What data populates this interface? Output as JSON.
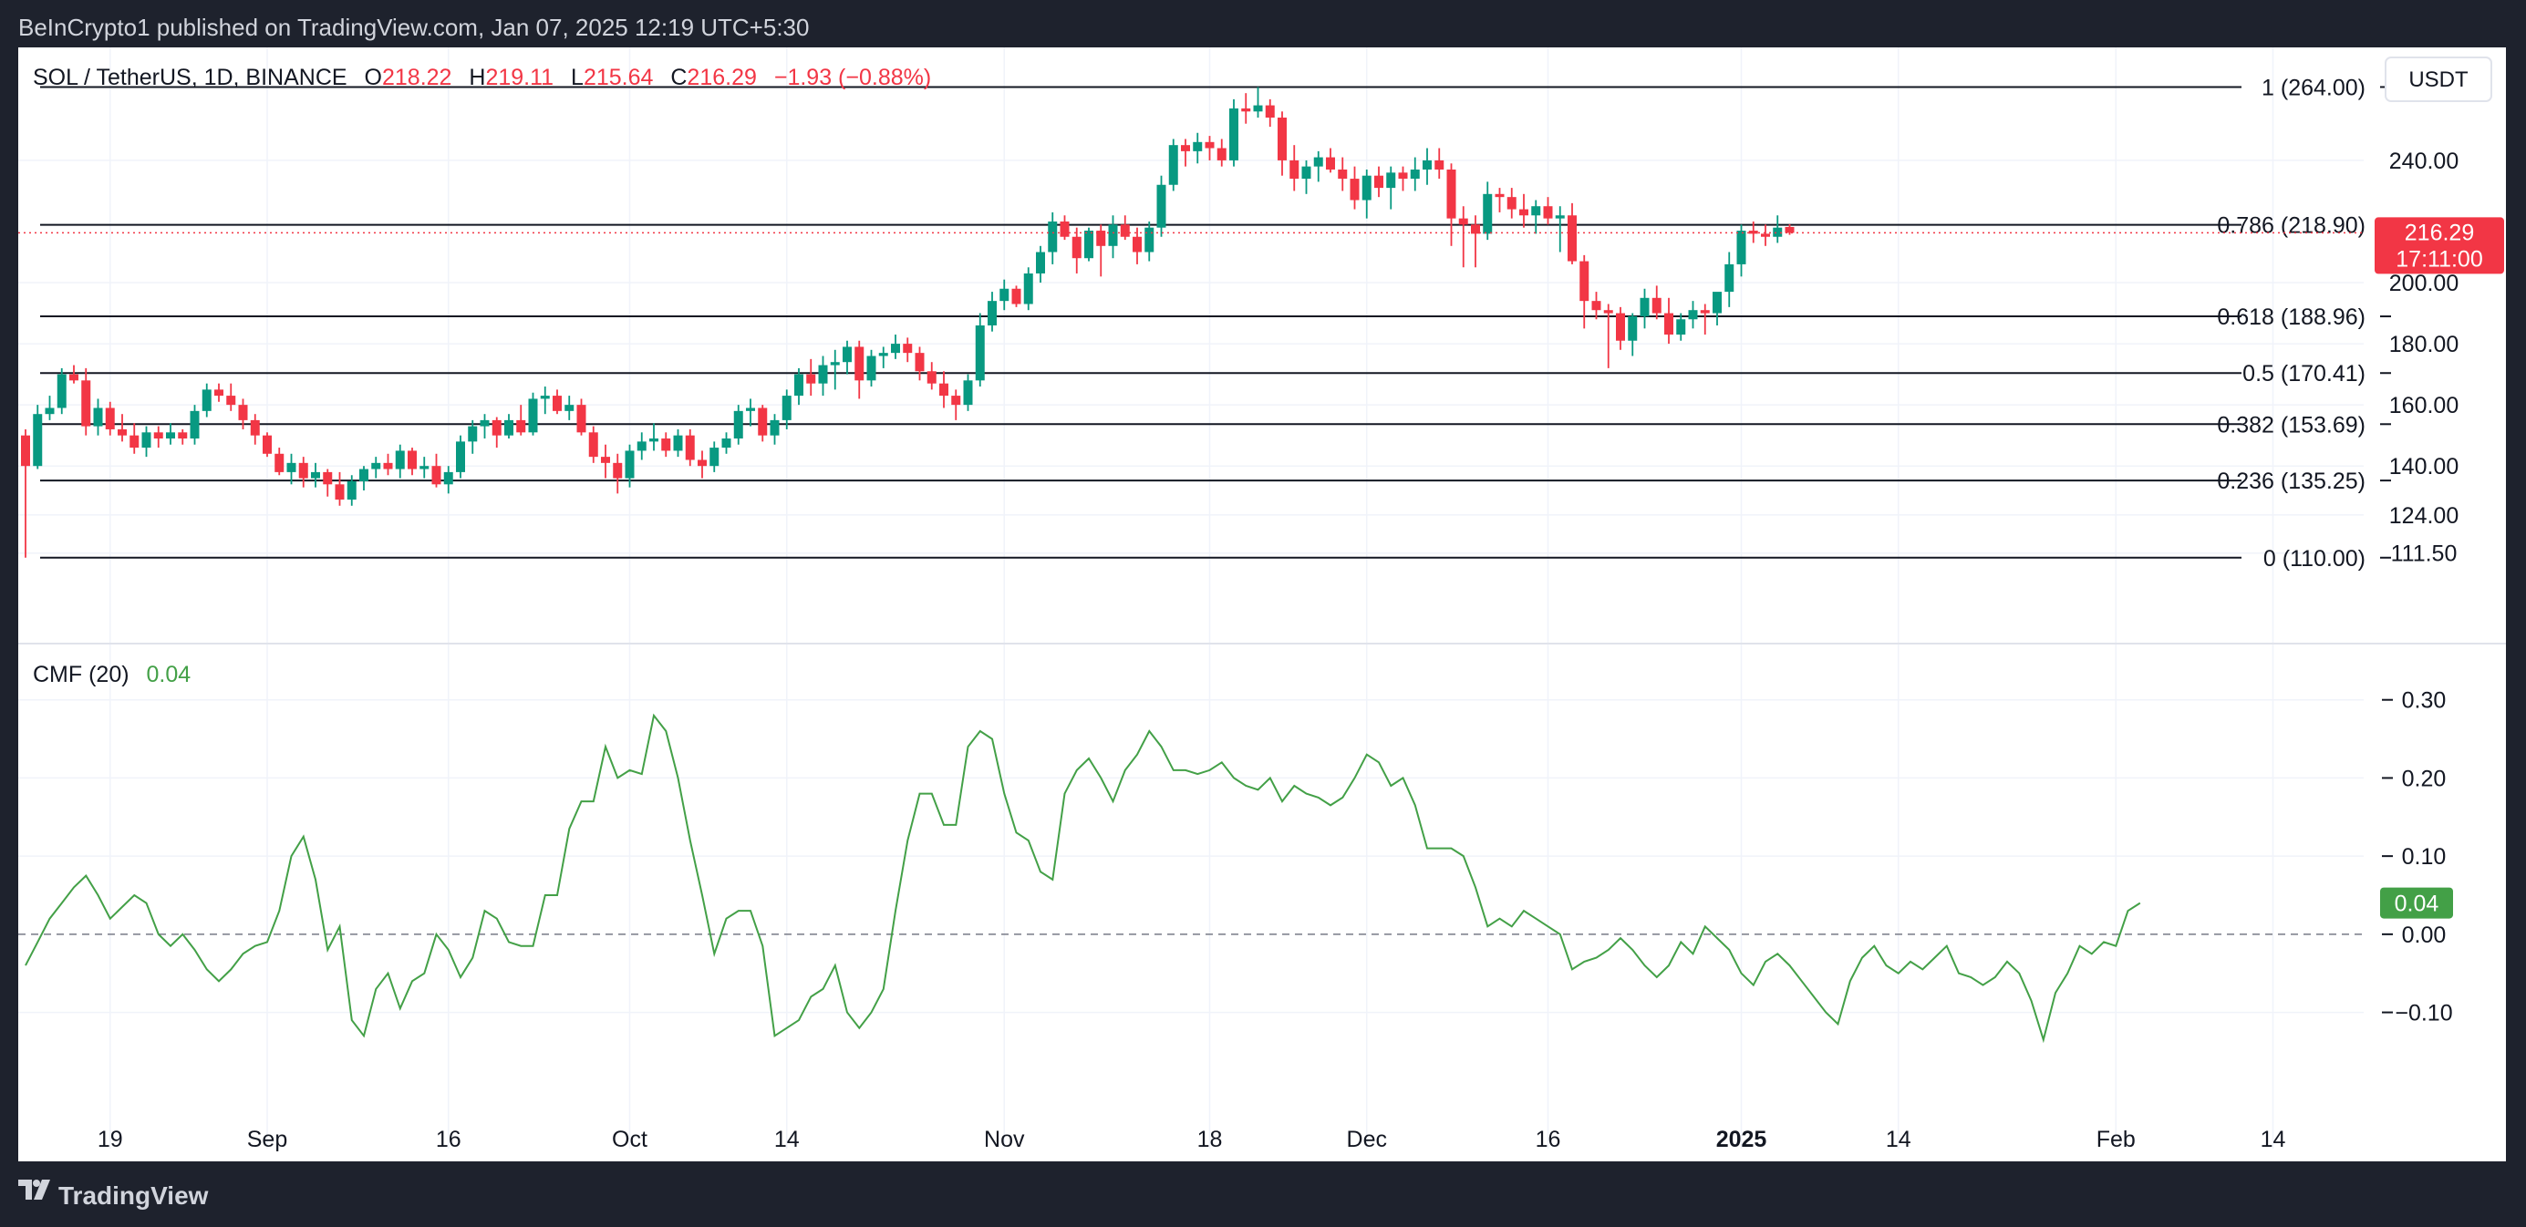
{
  "header": {
    "publisher": "BeInCrypto1 published on TradingView.com, Jan 07, 2025 12:19 UTC+5:30"
  },
  "footer": {
    "brand": "TradingView"
  },
  "legend": {
    "symbol": "SOL / TetherUS, 1D, BINANCE",
    "o_label": "O",
    "o_value": "218.22",
    "h_label": "H",
    "h_value": "219.11",
    "l_label": "L",
    "l_value": "215.64",
    "c_label": "C",
    "c_value": "216.29",
    "change": "−1.93 (−0.88%)"
  },
  "currency_button": "USDT",
  "price_axis": {
    "ticks": [
      {
        "value": 240,
        "label": "240.00"
      },
      {
        "value": 200,
        "label": "200.00"
      },
      {
        "value": 180,
        "label": "180.00"
      },
      {
        "value": 160,
        "label": "160.00"
      },
      {
        "value": 140,
        "label": "140.00"
      },
      {
        "value": 124,
        "label": "124.00"
      },
      {
        "value": 111.5,
        "label": "111.50"
      }
    ],
    "last_price": "216.29",
    "countdown": "17:11:00"
  },
  "fib_levels": [
    {
      "label": "1 (264.00)",
      "value": 264
    },
    {
      "label": "0.786 (218.90)",
      "value": 218.9
    },
    {
      "label": "0.618 (188.96)",
      "value": 188.96
    },
    {
      "label": "0.5 (170.41)",
      "value": 170.41
    },
    {
      "label": "0.382 (153.69)",
      "value": 153.69
    },
    {
      "label": "0.236 (135.25)",
      "value": 135.25
    },
    {
      "label": "0 (110.00)",
      "value": 110
    }
  ],
  "cmf": {
    "label": "CMF (20)",
    "value_label": "0.04",
    "badge": "0.04",
    "axis": [
      {
        "value": 0.3,
        "label": "0.30"
      },
      {
        "value": 0.2,
        "label": "0.20"
      },
      {
        "value": 0.1,
        "label": "0.10"
      },
      {
        "value": 0.0,
        "label": "0.00"
      },
      {
        "value": -0.1,
        "label": "−0.10"
      }
    ]
  },
  "time_axis": [
    {
      "label": "19",
      "day": 7,
      "bold": false
    },
    {
      "label": "Sep",
      "day": 20,
      "bold": false
    },
    {
      "label": "16",
      "day": 35,
      "bold": false
    },
    {
      "label": "Oct",
      "day": 50,
      "bold": false
    },
    {
      "label": "14",
      "day": 63,
      "bold": false
    },
    {
      "label": "Nov",
      "day": 81,
      "bold": false
    },
    {
      "label": "18",
      "day": 98,
      "bold": false
    },
    {
      "label": "Dec",
      "day": 111,
      "bold": false
    },
    {
      "label": "16",
      "day": 126,
      "bold": false
    },
    {
      "label": "2025",
      "day": 142,
      "bold": true
    },
    {
      "label": "14",
      "day": 155,
      "bold": false
    },
    {
      "label": "Feb",
      "day": 173,
      "bold": false
    },
    {
      "label": "14",
      "day": 186,
      "bold": false
    }
  ],
  "colors": {
    "up": "#089981",
    "down": "#f23645",
    "cmf": "#43a047",
    "grid": "#f0f3fa",
    "text": "#131722",
    "badge_green": "#43a047"
  },
  "chart_data": [
    {
      "type": "candlestick",
      "title": "SOL / TetherUS, 1D, BINANCE",
      "ylim": [
        98,
        271
      ],
      "log_scale": false,
      "x_start": "2024-08-12",
      "ohlc": [
        [
          150,
          152,
          110,
          140
        ],
        [
          140,
          160,
          139,
          157
        ],
        [
          157,
          163,
          155,
          159
        ],
        [
          159,
          172,
          157,
          170
        ],
        [
          170,
          173,
          167,
          168
        ],
        [
          168,
          172,
          150,
          153
        ],
        [
          153,
          162,
          150,
          159
        ],
        [
          159,
          161,
          150,
          152
        ],
        [
          152,
          157,
          148,
          150
        ],
        [
          150,
          154,
          144,
          146
        ],
        [
          146,
          153,
          143,
          151
        ],
        [
          151,
          153,
          146,
          149
        ],
        [
          149,
          154,
          147,
          151
        ],
        [
          151,
          152,
          147,
          149
        ],
        [
          149,
          160,
          147,
          158
        ],
        [
          158,
          167,
          156,
          165
        ],
        [
          165,
          167,
          161,
          163
        ],
        [
          163,
          167,
          158,
          160
        ],
        [
          160,
          162,
          152,
          155
        ],
        [
          155,
          157,
          147,
          150
        ],
        [
          150,
          151,
          143,
          144
        ],
        [
          144,
          146,
          137,
          138
        ],
        [
          138,
          144,
          134,
          141
        ],
        [
          141,
          143,
          133,
          136
        ],
        [
          136,
          141,
          133,
          138
        ],
        [
          138,
          139,
          130,
          134
        ],
        [
          134,
          138,
          127,
          129
        ],
        [
          129,
          137,
          127,
          135
        ],
        [
          135,
          140,
          132,
          139
        ],
        [
          139,
          143,
          136,
          141
        ],
        [
          141,
          144,
          137,
          139
        ],
        [
          139,
          147,
          136,
          145
        ],
        [
          145,
          146,
          137,
          139
        ],
        [
          139,
          143,
          136,
          140
        ],
        [
          140,
          144,
          133,
          134
        ],
        [
          134,
          140,
          131,
          138
        ],
        [
          138,
          150,
          136,
          148
        ],
        [
          148,
          155,
          144,
          153
        ],
        [
          153,
          157,
          149,
          155
        ],
        [
          155,
          156,
          146,
          150
        ],
        [
          150,
          157,
          149,
          155
        ],
        [
          155,
          160,
          150,
          151
        ],
        [
          151,
          164,
          150,
          162
        ],
        [
          162,
          166,
          157,
          163
        ],
        [
          163,
          165,
          157,
          158
        ],
        [
          158,
          163,
          155,
          160
        ],
        [
          160,
          162,
          150,
          151
        ],
        [
          151,
          153,
          141,
          143
        ],
        [
          143,
          147,
          136,
          141
        ],
        [
          141,
          144,
          131,
          136
        ],
        [
          136,
          147,
          133,
          145
        ],
        [
          145,
          151,
          142,
          148
        ],
        [
          148,
          154,
          145,
          149
        ],
        [
          149,
          151,
          143,
          145
        ],
        [
          145,
          152,
          143,
          150
        ],
        [
          150,
          152,
          140,
          142
        ],
        [
          142,
          145,
          136,
          140
        ],
        [
          140,
          148,
          138,
          146
        ],
        [
          146,
          151,
          144,
          149
        ],
        [
          149,
          160,
          147,
          158
        ],
        [
          158,
          162,
          153,
          159
        ],
        [
          159,
          160,
          148,
          150
        ],
        [
          150,
          157,
          147,
          155
        ],
        [
          155,
          165,
          152,
          163
        ],
        [
          163,
          172,
          160,
          170
        ],
        [
          170,
          175,
          163,
          167
        ],
        [
          167,
          176,
          163,
          173
        ],
        [
          173,
          178,
          165,
          174
        ],
        [
          174,
          181,
          170,
          179
        ],
        [
          179,
          181,
          162,
          168
        ],
        [
          168,
          178,
          166,
          176
        ],
        [
          176,
          179,
          172,
          177
        ],
        [
          177,
          183,
          175,
          180
        ],
        [
          180,
          182,
          174,
          177
        ],
        [
          177,
          179,
          168,
          171
        ],
        [
          171,
          174,
          165,
          167
        ],
        [
          167,
          171,
          159,
          163
        ],
        [
          163,
          165,
          155,
          160
        ],
        [
          160,
          170,
          158,
          168
        ],
        [
          168,
          190,
          166,
          186
        ],
        [
          186,
          197,
          184,
          194
        ],
        [
          194,
          201,
          191,
          198
        ],
        [
          198,
          199,
          192,
          193
        ],
        [
          193,
          205,
          191,
          203
        ],
        [
          203,
          212,
          200,
          210
        ],
        [
          210,
          223,
          206,
          220
        ],
        [
          220,
          222,
          214,
          215
        ],
        [
          215,
          218,
          203,
          208
        ],
        [
          208,
          218,
          207,
          217
        ],
        [
          217,
          219,
          202,
          212
        ],
        [
          212,
          222,
          208,
          219
        ],
        [
          219,
          222,
          214,
          215
        ],
        [
          215,
          218,
          206,
          210
        ],
        [
          210,
          220,
          207,
          218
        ],
        [
          218,
          235,
          215,
          232
        ],
        [
          232,
          247,
          230,
          245
        ],
        [
          245,
          247,
          238,
          243
        ],
        [
          243,
          249,
          239,
          246
        ],
        [
          246,
          248,
          240,
          244
        ],
        [
          244,
          247,
          238,
          240
        ],
        [
          240,
          260,
          238,
          257
        ],
        [
          257,
          262,
          252,
          256
        ],
        [
          256,
          264,
          254,
          258
        ],
        [
          258,
          260,
          251,
          254
        ],
        [
          254,
          256,
          235,
          240
        ],
        [
          240,
          245,
          230,
          234
        ],
        [
          234,
          240,
          229,
          238
        ],
        [
          238,
          243,
          233,
          241
        ],
        [
          241,
          244,
          236,
          237
        ],
        [
          237,
          241,
          230,
          234
        ],
        [
          234,
          238,
          224,
          227
        ],
        [
          227,
          237,
          221,
          235
        ],
        [
          235,
          238,
          228,
          231
        ],
        [
          231,
          238,
          224,
          236
        ],
        [
          236,
          238,
          230,
          234
        ],
        [
          234,
          241,
          230,
          237
        ],
        [
          237,
          244,
          232,
          240
        ],
        [
          240,
          244,
          234,
          237
        ],
        [
          237,
          239,
          212,
          221
        ],
        [
          221,
          225,
          205,
          219
        ],
        [
          219,
          222,
          205,
          216
        ],
        [
          216,
          233,
          214,
          229
        ],
        [
          229,
          231,
          223,
          228
        ],
        [
          228,
          231,
          221,
          224
        ],
        [
          224,
          229,
          218,
          222
        ],
        [
          222,
          227,
          216,
          225
        ],
        [
          225,
          228,
          219,
          221
        ],
        [
          221,
          225,
          210,
          222
        ],
        [
          222,
          226,
          206,
          207
        ],
        [
          207,
          209,
          185,
          194
        ],
        [
          194,
          197,
          188,
          191
        ],
        [
          191,
          193,
          172,
          190
        ],
        [
          190,
          192,
          178,
          181
        ],
        [
          181,
          190,
          176,
          189
        ],
        [
          189,
          198,
          185,
          195
        ],
        [
          195,
          199,
          188,
          190
        ],
        [
          190,
          195,
          180,
          183
        ],
        [
          183,
          190,
          181,
          188
        ],
        [
          188,
          194,
          185,
          191
        ],
        [
          191,
          193,
          183,
          190
        ],
        [
          190,
          196,
          186,
          197
        ],
        [
          197,
          210,
          192,
          206
        ],
        [
          206,
          219,
          202,
          217
        ],
        [
          217,
          220,
          213,
          216
        ],
        [
          216,
          219,
          212,
          215
        ],
        [
          215,
          222,
          213,
          218
        ],
        [
          218.22,
          219.11,
          215.64,
          216.29
        ]
      ]
    },
    {
      "type": "line",
      "title": "CMF (20)",
      "ylim": [
        -0.23,
        0.33
      ],
      "current": 0.04,
      "values": [
        -0.04,
        -0.01,
        0.02,
        0.04,
        0.06,
        0.075,
        0.05,
        0.02,
        0.035,
        0.05,
        0.04,
        0.0,
        -0.015,
        0.0,
        -0.02,
        -0.045,
        -0.06,
        -0.045,
        -0.025,
        -0.015,
        -0.01,
        0.03,
        0.1,
        0.125,
        0.07,
        -0.02,
        0.01,
        -0.11,
        -0.13,
        -0.07,
        -0.05,
        -0.095,
        -0.06,
        -0.05,
        0.0,
        -0.02,
        -0.055,
        -0.03,
        0.03,
        0.02,
        -0.01,
        -0.015,
        -0.015,
        0.05,
        0.05,
        0.135,
        0.17,
        0.17,
        0.24,
        0.2,
        0.21,
        0.205,
        0.28,
        0.26,
        0.2,
        0.12,
        0.05,
        -0.025,
        0.02,
        0.03,
        0.03,
        -0.015,
        -0.13,
        -0.12,
        -0.11,
        -0.08,
        -0.07,
        -0.04,
        -0.1,
        -0.12,
        -0.1,
        -0.07,
        0.03,
        0.12,
        0.18,
        0.18,
        0.14,
        0.14,
        0.24,
        0.26,
        0.25,
        0.18,
        0.13,
        0.12,
        0.08,
        0.07,
        0.18,
        0.21,
        0.225,
        0.2,
        0.17,
        0.21,
        0.23,
        0.26,
        0.24,
        0.21,
        0.21,
        0.205,
        0.21,
        0.22,
        0.2,
        0.19,
        0.185,
        0.2,
        0.17,
        0.19,
        0.18,
        0.175,
        0.165,
        0.175,
        0.2,
        0.23,
        0.22,
        0.19,
        0.2,
        0.165,
        0.11,
        0.11,
        0.11,
        0.1,
        0.06,
        0.01,
        0.02,
        0.01,
        0.03,
        0.02,
        0.01,
        0.0,
        -0.045,
        -0.035,
        -0.03,
        -0.02,
        -0.005,
        -0.02,
        -0.04,
        -0.055,
        -0.04,
        -0.01,
        -0.025,
        0.01,
        -0.005,
        -0.02,
        -0.05,
        -0.065,
        -0.035,
        -0.025,
        -0.04,
        -0.06,
        -0.08,
        -0.1,
        -0.115,
        -0.06,
        -0.03,
        -0.015,
        -0.04,
        -0.05,
        -0.035,
        -0.045,
        -0.03,
        -0.015,
        -0.05,
        -0.055,
        -0.065,
        -0.055,
        -0.035,
        -0.05,
        -0.085,
        -0.135,
        -0.075,
        -0.05,
        -0.015,
        -0.025,
        -0.01,
        -0.015,
        0.03,
        0.04
      ]
    }
  ]
}
